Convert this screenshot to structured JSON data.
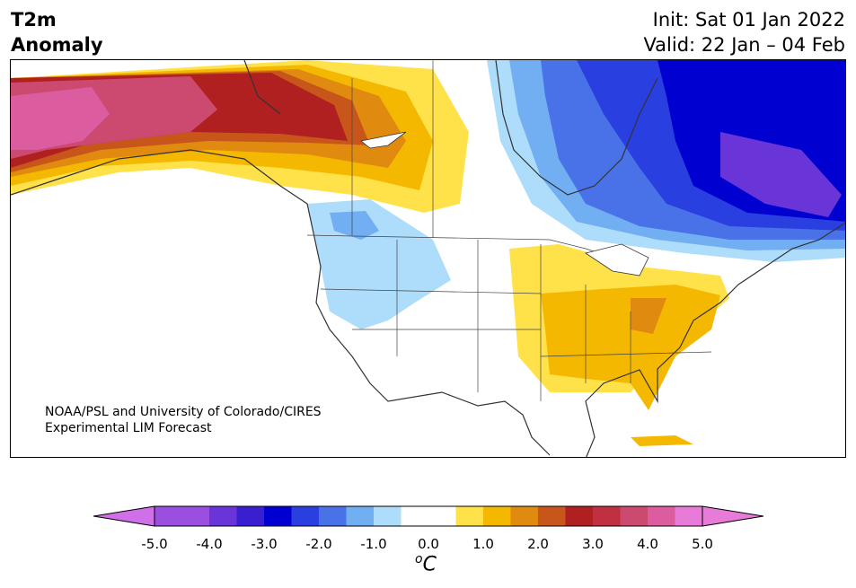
{
  "title": {
    "line1": "T2m",
    "line2": "Anomaly"
  },
  "forecast_info": {
    "init": "Init: Sat 01 Jan 2022",
    "valid": "Valid: 22 Jan – 04 Feb"
  },
  "credit": {
    "line1": "NOAA/PSL and University of Colorado/CIRES",
    "line2": "Experimental LIM Forecast"
  },
  "colorbar": {
    "ticks": [
      "-5.0",
      "-4.0",
      "-3.0",
      "-2.0",
      "-1.0",
      "0.0",
      "1.0",
      "2.0",
      "3.0",
      "4.0",
      "5.0"
    ],
    "unit_sup": "o",
    "unit": "C",
    "range": [
      -5.0,
      5.0
    ],
    "bins": [
      {
        "from": -5.0,
        "to": -4.5,
        "color": "#9a4fe0"
      },
      {
        "from": -4.5,
        "to": -4.0,
        "color": "#9a4fe0"
      },
      {
        "from": -4.0,
        "to": -3.5,
        "color": "#6a35d8"
      },
      {
        "from": -3.5,
        "to": -3.0,
        "color": "#3a1fd0"
      },
      {
        "from": -3.0,
        "to": -2.5,
        "color": "#0000d0"
      },
      {
        "from": -2.5,
        "to": -2.0,
        "color": "#2a3fe0"
      },
      {
        "from": -2.0,
        "to": -1.5,
        "color": "#4a72e8"
      },
      {
        "from": -1.5,
        "to": -1.0,
        "color": "#72aef2"
      },
      {
        "from": -1.0,
        "to": -0.5,
        "color": "#aedcfb"
      },
      {
        "from": -0.5,
        "to": 0.5,
        "color": "#ffffff"
      },
      {
        "from": 0.5,
        "to": 1.0,
        "color": "#ffe24a"
      },
      {
        "from": 1.0,
        "to": 1.5,
        "color": "#f5b800"
      },
      {
        "from": 1.5,
        "to": 2.0,
        "color": "#e08a10"
      },
      {
        "from": 2.0,
        "to": 2.5,
        "color": "#c8561a"
      },
      {
        "from": 2.5,
        "to": 3.0,
        "color": "#b02020"
      },
      {
        "from": 3.0,
        "to": 3.5,
        "color": "#c03040"
      },
      {
        "from": 3.5,
        "to": 4.0,
        "color": "#cc4a70"
      },
      {
        "from": 4.0,
        "to": 4.5,
        "color": "#dc5ca0"
      },
      {
        "from": 4.5,
        "to": 5.0,
        "color": "#e87ad8"
      }
    ],
    "under_color": "#d070e8",
    "over_color": "#e87ad8"
  },
  "map": {
    "region": "North America",
    "land_outline_color": "#333333"
  }
}
